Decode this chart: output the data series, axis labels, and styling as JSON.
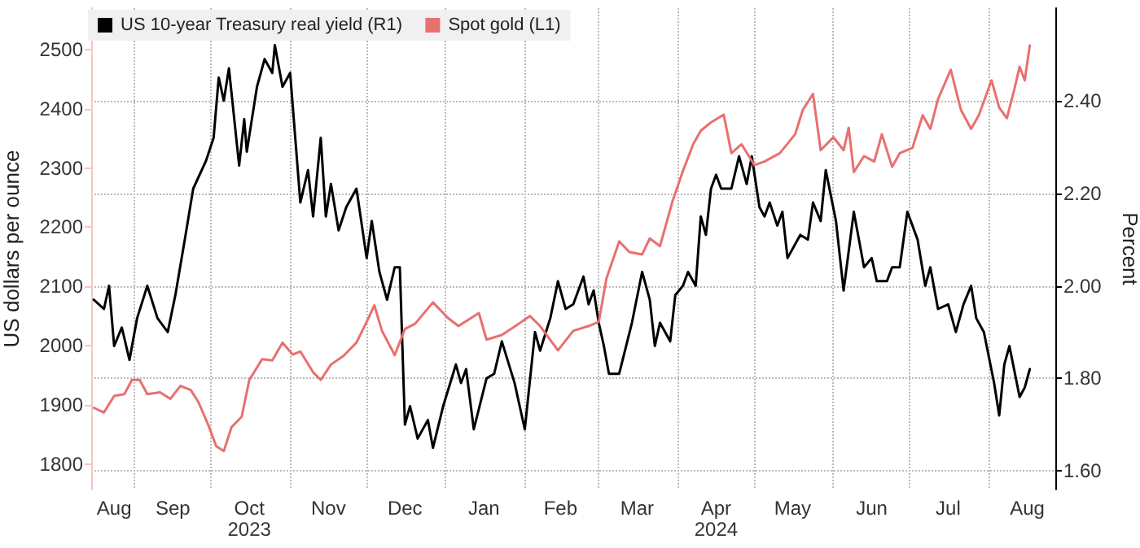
{
  "chart_data": {
    "type": "line",
    "ylabel": "US dollars per ounce",
    "y2label": "Percent",
    "legend": "top left",
    "grid": true,
    "marker": "none",
    "line_style": "solid",
    "xlim": [
      "2023-08-15",
      "2024-08-27"
    ],
    "xticks": [
      {
        "value": "2023-08-24",
        "label": "Aug"
      },
      {
        "value": "2023-09-16",
        "label": "Sep"
      },
      {
        "value": "2023-10-16",
        "label": "Oct\n2023"
      },
      {
        "value": "2023-11-16",
        "label": "Nov"
      },
      {
        "value": "2023-12-16",
        "label": "Dec"
      },
      {
        "value": "2024-01-16",
        "label": "Jan"
      },
      {
        "value": "2024-02-15",
        "label": "Feb"
      },
      {
        "value": "2024-03-16",
        "label": "Mar"
      },
      {
        "value": "2024-04-16",
        "label": "Apr\n2024"
      },
      {
        "value": "2024-05-16",
        "label": "May"
      },
      {
        "value": "2024-06-16",
        "label": "Jun"
      },
      {
        "value": "2024-07-16",
        "label": "Jul"
      },
      {
        "value": "2024-08-16",
        "label": "Aug"
      },
      {
        "value": "2023-09-01",
        "label": null
      },
      {
        "value": "2023-10-01",
        "label": null
      },
      {
        "value": "2023-11-01",
        "label": null
      },
      {
        "value": "2023-12-01",
        "label": null
      },
      {
        "value": "2024-01-01",
        "label": null
      },
      {
        "value": "2024-02-01",
        "label": null
      },
      {
        "value": "2024-03-01",
        "label": null
      },
      {
        "value": "2024-04-01",
        "label": null
      },
      {
        "value": "2024-05-01",
        "label": null
      },
      {
        "value": "2024-06-01",
        "label": null
      },
      {
        "value": "2024-07-01",
        "label": null
      },
      {
        "value": "2024-08-01",
        "label": null
      }
    ],
    "ylim": [
      1757,
      2570
    ],
    "yticks": [
      1800,
      1900,
      2000,
      2100,
      2200,
      2300,
      2400,
      2500
    ],
    "y2lim": [
      1.56,
      2.6
    ],
    "y2ticks": [
      {
        "value": 1.6,
        "label": "1.60"
      },
      {
        "value": 1.8,
        "label": "1.80"
      },
      {
        "value": 2.0,
        "label": "2.00"
      },
      {
        "value": 2.2,
        "label": "2.20"
      },
      {
        "value": 2.4,
        "label": "2.40"
      }
    ],
    "series": [
      {
        "name": "US 10-year Treasury real yield (R1)",
        "color": "#000000",
        "axis": "y2",
        "x": [
          "2023-08-16",
          "2023-08-20",
          "2023-08-22",
          "2023-08-24",
          "2023-08-27",
          "2023-08-30",
          "2023-09-02",
          "2023-09-06",
          "2023-09-10",
          "2023-09-14",
          "2023-09-17",
          "2023-09-21",
          "2023-09-24",
          "2023-09-29",
          "2023-10-02",
          "2023-10-04",
          "2023-10-06",
          "2023-10-08",
          "2023-10-12",
          "2023-10-14",
          "2023-10-15",
          "2023-10-19",
          "2023-10-22",
          "2023-10-25",
          "2023-10-26",
          "2023-10-29",
          "2023-11-01",
          "2023-11-05",
          "2023-11-08",
          "2023-11-10",
          "2023-11-13",
          "2023-11-15",
          "2023-11-17",
          "2023-11-20",
          "2023-11-23",
          "2023-11-27",
          "2023-12-01",
          "2023-12-03",
          "2023-12-06",
          "2023-12-09",
          "2023-12-12",
          "2023-12-14",
          "2023-12-16",
          "2023-12-18",
          "2023-12-21",
          "2023-12-25",
          "2023-12-27",
          "2023-12-31",
          "2024-01-05",
          "2024-01-07",
          "2024-01-09",
          "2024-01-12",
          "2024-01-17",
          "2024-01-20",
          "2024-01-23",
          "2024-01-28",
          "2024-02-01",
          "2024-02-05",
          "2024-02-07",
          "2024-02-11",
          "2024-02-14",
          "2024-02-17",
          "2024-02-20",
          "2024-02-24",
          "2024-02-26",
          "2024-02-28",
          "2024-03-01",
          "2024-03-03",
          "2024-03-05",
          "2024-03-09",
          "2024-03-14",
          "2024-03-18",
          "2024-03-21",
          "2024-03-23",
          "2024-03-25",
          "2024-03-29",
          "2024-03-31",
          "2024-04-03",
          "2024-04-05",
          "2024-04-08",
          "2024-04-10",
          "2024-04-12",
          "2024-04-14",
          "2024-04-16",
          "2024-04-18",
          "2024-04-22",
          "2024-04-25",
          "2024-04-28",
          "2024-04-30",
          "2024-05-03",
          "2024-05-05",
          "2024-05-07",
          "2024-05-10",
          "2024-05-12",
          "2024-05-14",
          "2024-05-19",
          "2024-05-22",
          "2024-05-24",
          "2024-05-27",
          "2024-05-29",
          "2024-06-02",
          "2024-06-05",
          "2024-06-09",
          "2024-06-13",
          "2024-06-16",
          "2024-06-18",
          "2024-06-22",
          "2024-06-24",
          "2024-06-27",
          "2024-06-30",
          "2024-07-04",
          "2024-07-07",
          "2024-07-09",
          "2024-07-12",
          "2024-07-16",
          "2024-07-19",
          "2024-07-22",
          "2024-07-25",
          "2024-07-27",
          "2024-07-30",
          "2024-08-03",
          "2024-08-05",
          "2024-08-07",
          "2024-08-09",
          "2024-08-13",
          "2024-08-15",
          "2024-08-17"
        ],
        "values": [
          1.97,
          1.95,
          2.0,
          1.87,
          1.91,
          1.84,
          1.93,
          2.0,
          1.93,
          1.9,
          1.98,
          2.11,
          2.21,
          2.27,
          2.32,
          2.45,
          2.4,
          2.47,
          2.26,
          2.36,
          2.29,
          2.43,
          2.49,
          2.46,
          2.52,
          2.43,
          2.46,
          2.18,
          2.25,
          2.15,
          2.32,
          2.15,
          2.22,
          2.12,
          2.17,
          2.21,
          2.06,
          2.14,
          2.03,
          1.97,
          2.04,
          2.04,
          1.7,
          1.74,
          1.67,
          1.71,
          1.65,
          1.74,
          1.83,
          1.79,
          1.82,
          1.69,
          1.8,
          1.81,
          1.88,
          1.79,
          1.69,
          1.9,
          1.86,
          1.93,
          2.01,
          1.95,
          1.96,
          2.02,
          1.96,
          1.99,
          1.92,
          1.87,
          1.81,
          1.81,
          1.92,
          2.03,
          1.97,
          1.87,
          1.92,
          1.88,
          1.98,
          2.0,
          2.03,
          2.0,
          2.15,
          2.11,
          2.21,
          2.24,
          2.21,
          2.21,
          2.28,
          2.22,
          2.28,
          2.17,
          2.15,
          2.18,
          2.13,
          2.16,
          2.06,
          2.11,
          2.1,
          2.18,
          2.14,
          2.25,
          2.14,
          1.99,
          2.16,
          2.04,
          2.06,
          2.01,
          2.01,
          2.04,
          2.04,
          2.16,
          2.1,
          2.0,
          2.04,
          1.95,
          1.96,
          1.9,
          1.96,
          2.0,
          1.93,
          1.9,
          1.79,
          1.72,
          1.83,
          1.87,
          1.76,
          1.78,
          1.82
        ]
      },
      {
        "name": "Spot gold (L1)",
        "color": "#e8706f",
        "x": [
          "2023-08-16",
          "2023-08-20",
          "2023-08-24",
          "2023-08-28",
          "2023-08-31",
          "2023-09-03",
          "2023-09-06",
          "2023-09-11",
          "2023-09-15",
          "2023-09-19",
          "2023-09-23",
          "2023-09-26",
          "2023-09-30",
          "2023-10-03",
          "2023-10-06",
          "2023-10-09",
          "2023-10-13",
          "2023-10-16",
          "2023-10-21",
          "2023-10-25",
          "2023-10-29",
          "2023-11-02",
          "2023-11-05",
          "2023-11-10",
          "2023-11-13",
          "2023-11-17",
          "2023-11-22",
          "2023-11-27",
          "2023-12-01",
          "2023-12-04",
          "2023-12-07",
          "2023-12-12",
          "2023-12-16",
          "2023-12-20",
          "2023-12-27",
          "2024-01-02",
          "2024-01-06",
          "2024-01-14",
          "2024-01-17",
          "2024-01-23",
          "2024-01-30",
          "2024-02-03",
          "2024-02-07",
          "2024-02-14",
          "2024-02-20",
          "2024-02-26",
          "2024-03-01",
          "2024-03-04",
          "2024-03-09",
          "2024-03-13",
          "2024-03-18",
          "2024-03-21",
          "2024-03-25",
          "2024-03-30",
          "2024-04-03",
          "2024-04-07",
          "2024-04-10",
          "2024-04-14",
          "2024-04-19",
          "2024-04-22",
          "2024-04-26",
          "2024-05-01",
          "2024-05-05",
          "2024-05-11",
          "2024-05-17",
          "2024-05-20",
          "2024-05-24",
          "2024-05-27",
          "2024-06-01",
          "2024-06-05",
          "2024-06-07",
          "2024-06-09",
          "2024-06-13",
          "2024-06-17",
          "2024-06-20",
          "2024-06-24",
          "2024-06-27",
          "2024-07-02",
          "2024-07-06",
          "2024-07-09",
          "2024-07-12",
          "2024-07-17",
          "2024-07-21",
          "2024-07-25",
          "2024-07-28",
          "2024-08-02",
          "2024-08-05",
          "2024-08-08",
          "2024-08-11",
          "2024-08-13",
          "2024-08-15",
          "2024-08-17"
        ],
        "values": [
          1895,
          1887,
          1915,
          1918,
          1942,
          1942,
          1918,
          1921,
          1910,
          1932,
          1925,
          1905,
          1865,
          1830,
          1822,
          1862,
          1880,
          1942,
          1977,
          1975,
          2005,
          1985,
          1990,
          1955,
          1942,
          1968,
          1983,
          2005,
          2040,
          2068,
          2025,
          1984,
          2028,
          2037,
          2073,
          2046,
          2033,
          2055,
          2010,
          2018,
          2038,
          2050,
          2033,
          1992,
          2025,
          2033,
          2040,
          2113,
          2176,
          2158,
          2154,
          2181,
          2168,
          2245,
          2295,
          2340,
          2363,
          2377,
          2390,
          2325,
          2340,
          2305,
          2311,
          2325,
          2357,
          2398,
          2425,
          2330,
          2352,
          2330,
          2368,
          2293,
          2320,
          2311,
          2357,
          2302,
          2325,
          2334,
          2389,
          2366,
          2416,
          2466,
          2398,
          2366,
          2389,
          2448,
          2402,
          2384,
          2434,
          2471,
          2448,
          2507
        ]
      }
    ]
  }
}
